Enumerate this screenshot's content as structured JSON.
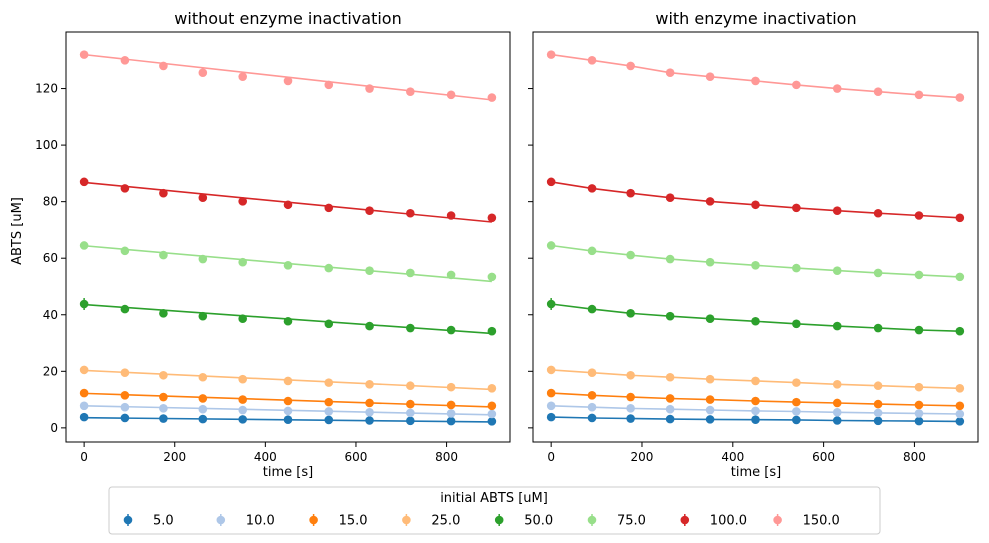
{
  "legend": {
    "title": "initial ABTS [uM]",
    "placement": "bottom-center",
    "entries": [
      "5.0",
      "10.0",
      "15.0",
      "25.0",
      "50.0",
      "75.0",
      "100.0",
      "150.0"
    ]
  },
  "colors": {
    "5.0": "#1f77b4",
    "10.0": "#aec7e8",
    "15.0": "#ff7f0e",
    "25.0": "#ffbb78",
    "50.0": "#2ca02c",
    "75.0": "#98df8a",
    "100.0": "#d62728",
    "150.0": "#ff9896"
  },
  "chart_data": [
    {
      "type": "scatter",
      "title": "without enzyme inactivation",
      "xlabel": "time [s]",
      "ylabel": "ABTS [uM]",
      "xlim": [
        -40,
        940
      ],
      "ylim": [
        -5,
        140
      ],
      "x_ticks": [
        0,
        200,
        400,
        600,
        800
      ],
      "y_ticks": [
        0,
        20,
        40,
        60,
        80,
        100,
        120
      ],
      "grid": false,
      "x": [
        0,
        90,
        175,
        262,
        350,
        450,
        540,
        630,
        720,
        810,
        900
      ],
      "series": [
        {
          "name": "5.0",
          "points": [
            3.8,
            3.5,
            3.3,
            3.1,
            3.0,
            2.9,
            2.8,
            2.6,
            2.5,
            2.4,
            2.3
          ],
          "fit": [
            3.6,
            2.1
          ]
        },
        {
          "name": "10.0",
          "points": [
            7.8,
            7.3,
            6.9,
            6.6,
            6.3,
            6.0,
            5.8,
            5.5,
            5.3,
            5.1,
            4.9
          ],
          "fit": [
            7.8,
            4.6
          ]
        },
        {
          "name": "15.0",
          "points": [
            12.3,
            11.5,
            10.9,
            10.4,
            10.0,
            9.5,
            9.1,
            8.8,
            8.4,
            8.1,
            7.8
          ],
          "fit": [
            12.2,
            7.4
          ]
        },
        {
          "name": "25.0",
          "points": [
            20.5,
            19.5,
            18.6,
            17.9,
            17.2,
            16.6,
            16.0,
            15.4,
            14.9,
            14.4,
            14.0
          ],
          "fit": [
            20.3,
            13.6
          ]
        },
        {
          "name": "50.0",
          "points": [
            43.8,
            42.0,
            40.5,
            39.5,
            38.6,
            37.7,
            36.8,
            36.0,
            35.3,
            34.6,
            34.2
          ],
          "fit": [
            43.6,
            33.4
          ]
        },
        {
          "name": "75.0",
          "points": [
            64.5,
            62.6,
            61.1,
            59.7,
            58.6,
            57.5,
            56.5,
            55.6,
            54.8,
            54.1,
            53.4
          ],
          "fit": [
            64.4,
            51.8
          ]
        },
        {
          "name": "100.0",
          "points": [
            87.0,
            84.7,
            83.0,
            81.4,
            80.1,
            78.9,
            77.8,
            76.8,
            75.9,
            75.1,
            74.3
          ],
          "fit": [
            86.8,
            72.8
          ]
        },
        {
          "name": "150.0",
          "points": [
            132.0,
            130.0,
            128.0,
            125.6,
            124.2,
            122.7,
            121.3,
            120.0,
            118.9,
            117.8,
            116.8
          ],
          "fit": [
            132.0,
            116.0
          ]
        }
      ]
    },
    {
      "type": "scatter",
      "title": "with enzyme inactivation",
      "xlabel": "time [s]",
      "ylabel": "",
      "xlim": [
        -40,
        940
      ],
      "ylim": [
        -5,
        140
      ],
      "x_ticks": [
        0,
        200,
        400,
        600,
        800
      ],
      "y_ticks": [
        0,
        20,
        40,
        60,
        80,
        100,
        120
      ],
      "grid": false,
      "shared_y": true,
      "x": [
        0,
        90,
        175,
        262,
        350,
        450,
        540,
        630,
        720,
        810,
        900
      ],
      "series": [
        {
          "name": "5.0",
          "points": [
            3.8,
            3.5,
            3.3,
            3.1,
            3.0,
            2.9,
            2.8,
            2.6,
            2.5,
            2.4,
            2.3
          ],
          "fit_curve": true
        },
        {
          "name": "10.0",
          "points": [
            7.8,
            7.3,
            6.9,
            6.6,
            6.3,
            6.0,
            5.8,
            5.5,
            5.3,
            5.1,
            4.9
          ],
          "fit_curve": true
        },
        {
          "name": "15.0",
          "points": [
            12.3,
            11.5,
            10.9,
            10.4,
            10.0,
            9.5,
            9.1,
            8.8,
            8.4,
            8.1,
            7.8
          ],
          "fit_curve": true
        },
        {
          "name": "25.0",
          "points": [
            20.5,
            19.5,
            18.6,
            17.9,
            17.2,
            16.6,
            16.0,
            15.4,
            14.9,
            14.4,
            14.0
          ],
          "fit_curve": true
        },
        {
          "name": "50.0",
          "points": [
            43.8,
            42.0,
            40.5,
            39.5,
            38.6,
            37.7,
            36.8,
            36.0,
            35.3,
            34.6,
            34.2
          ],
          "fit_curve": true
        },
        {
          "name": "75.0",
          "points": [
            64.5,
            62.6,
            61.1,
            59.7,
            58.6,
            57.5,
            56.5,
            55.6,
            54.8,
            54.1,
            53.4
          ],
          "fit_curve": true
        },
        {
          "name": "100.0",
          "points": [
            87.0,
            84.7,
            83.0,
            81.4,
            80.1,
            78.9,
            77.8,
            76.8,
            75.9,
            75.1,
            74.3
          ],
          "fit_curve": true
        },
        {
          "name": "150.0",
          "points": [
            132.0,
            130.0,
            128.0,
            125.6,
            124.2,
            122.7,
            121.3,
            120.0,
            118.9,
            117.8,
            116.8
          ],
          "fit_curve": true
        }
      ]
    }
  ]
}
